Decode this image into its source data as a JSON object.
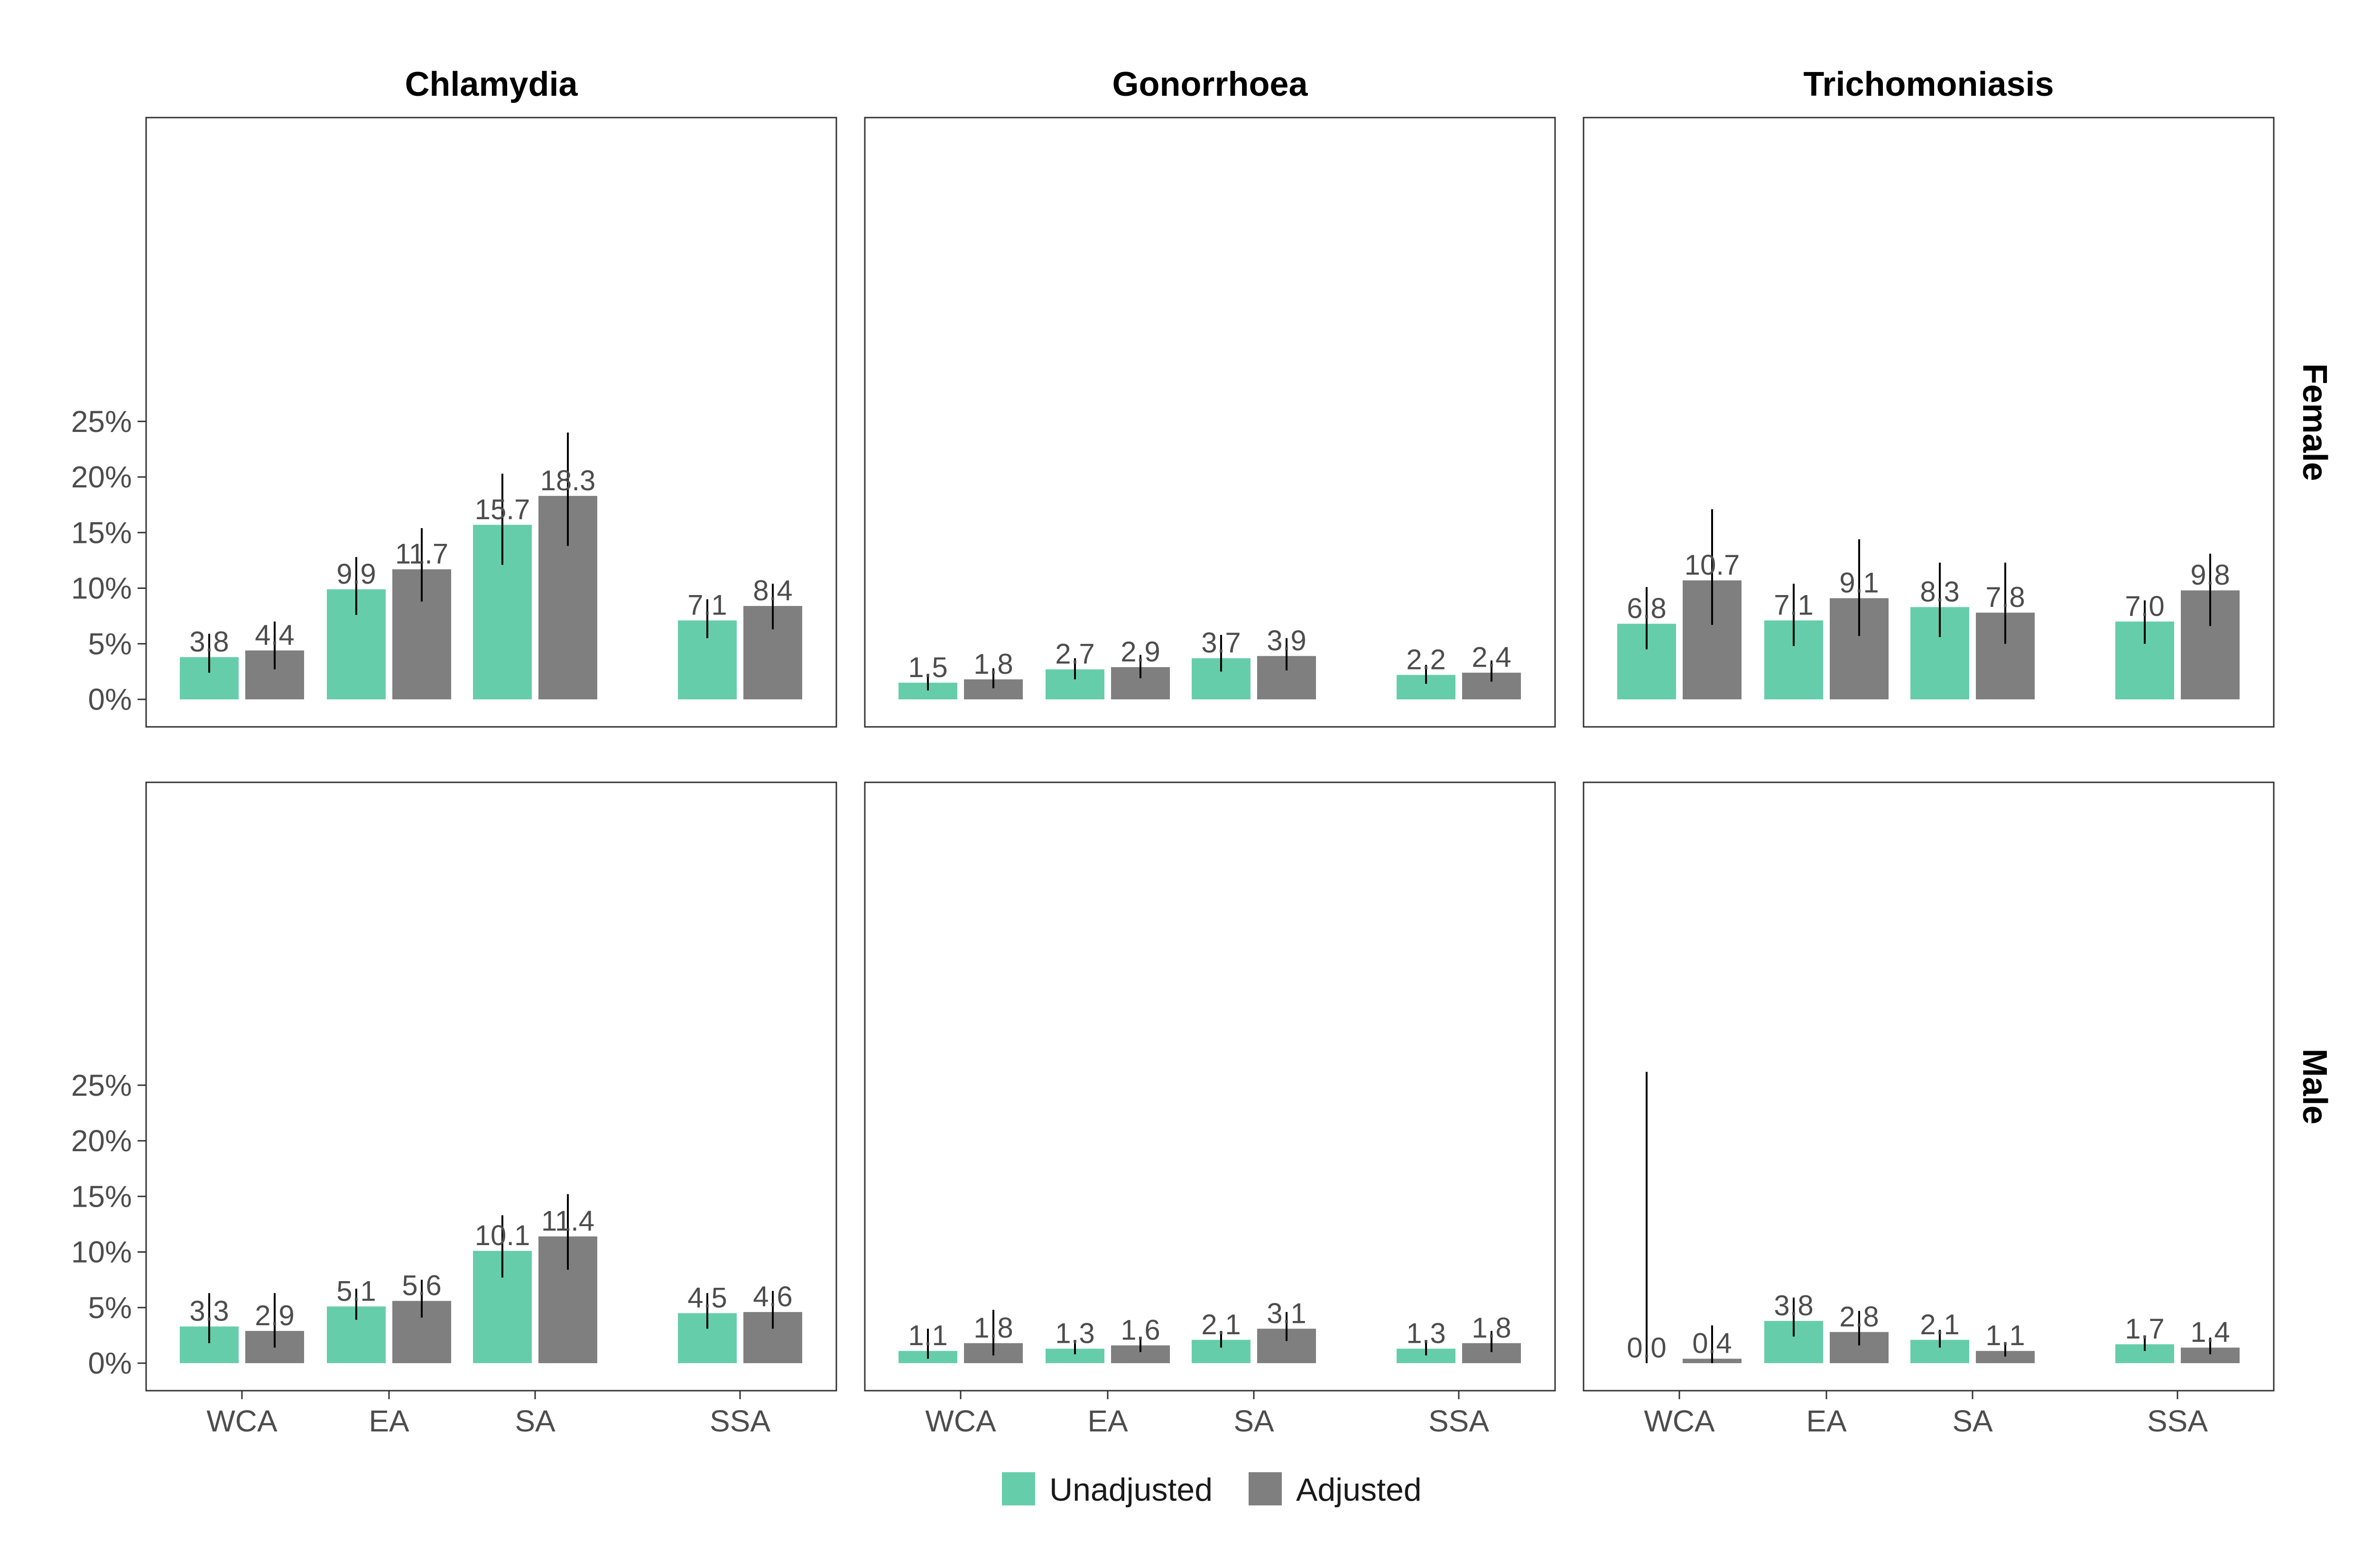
{
  "chart_data": {
    "type": "bar",
    "facets": {
      "columns": [
        "Chlamydia",
        "Gonorrhoea",
        "Trichomoniasis"
      ],
      "rows": [
        "Female",
        "Male"
      ]
    },
    "categories": [
      "WCA",
      "EA",
      "SA",
      "SSA"
    ],
    "series_names": [
      "Unadjusted",
      "Adjusted"
    ],
    "colors": {
      "Unadjusted": "#66cdaa",
      "Adjusted": "#7f7f7f"
    },
    "y_axis": {
      "ylim": [
        0,
        25
      ],
      "ticks": [
        "0%",
        "5%",
        "10%",
        "15%",
        "20%",
        "25%"
      ],
      "tick_values": [
        0,
        5,
        10,
        15,
        20,
        25
      ]
    },
    "panels": [
      {
        "disease": "Chlamydia",
        "sex": "Female",
        "unadjusted": [
          3.8,
          9.9,
          15.7,
          7.1
        ],
        "adjusted": [
          4.4,
          11.7,
          18.3,
          8.4
        ],
        "unadjusted_labels": [
          "3.8",
          "9.9",
          "15.7",
          "7.1"
        ],
        "adjusted_labels": [
          "4.4",
          "11.7",
          "18.3",
          "8.4"
        ],
        "unadjusted_ci": [
          [
            2.4,
            5.9
          ],
          [
            7.6,
            12.8
          ],
          [
            12.1,
            20.3
          ],
          [
            5.5,
            9.0
          ]
        ],
        "adjusted_ci": [
          [
            2.7,
            7.0
          ],
          [
            8.8,
            15.4
          ],
          [
            13.8,
            24.0
          ],
          [
            6.3,
            10.4
          ]
        ]
      },
      {
        "disease": "Gonorrhoea",
        "sex": "Female",
        "unadjusted": [
          1.5,
          2.7,
          3.7,
          2.2
        ],
        "adjusted": [
          1.8,
          2.9,
          3.9,
          2.4
        ],
        "unadjusted_labels": [
          "1.5",
          "2.7",
          "3.7",
          "2.2"
        ],
        "adjusted_labels": [
          "1.8",
          "2.9",
          "3.9",
          "2.4"
        ],
        "unadjusted_ci": [
          [
            0.8,
            2.3
          ],
          [
            1.8,
            3.7
          ],
          [
            2.5,
            5.8
          ],
          [
            1.4,
            3.1
          ]
        ],
        "adjusted_ci": [
          [
            1.0,
            2.8
          ],
          [
            1.9,
            4.0
          ],
          [
            2.6,
            5.5
          ],
          [
            1.6,
            3.5
          ]
        ]
      },
      {
        "disease": "Trichomoniasis",
        "sex": "Female",
        "unadjusted": [
          6.8,
          7.1,
          8.3,
          7.0
        ],
        "adjusted": [
          10.7,
          9.1,
          7.8,
          9.8
        ],
        "unadjusted_labels": [
          "6.8",
          "7.1",
          "8.3",
          "7.0"
        ],
        "adjusted_labels": [
          "10.7",
          "9.1",
          "7.8",
          "9.8"
        ],
        "unadjusted_ci": [
          [
            4.5,
            10.1
          ],
          [
            4.8,
            10.4
          ],
          [
            5.6,
            12.3
          ],
          [
            5.0,
            8.9
          ]
        ],
        "adjusted_ci": [
          [
            6.7,
            17.1
          ],
          [
            5.7,
            14.4
          ],
          [
            5.0,
            12.3
          ],
          [
            6.6,
            13.1
          ]
        ]
      },
      {
        "disease": "Chlamydia",
        "sex": "Male",
        "unadjusted": [
          3.3,
          5.1,
          10.1,
          4.5
        ],
        "adjusted": [
          2.9,
          5.6,
          11.4,
          4.6
        ],
        "unadjusted_labels": [
          "3.3",
          "5.1",
          "10.1",
          "4.5"
        ],
        "adjusted_labels": [
          "2.9",
          "5.6",
          "11.4",
          "4.6"
        ],
        "unadjusted_ci": [
          [
            1.8,
            6.3
          ],
          [
            3.9,
            6.7
          ],
          [
            7.7,
            13.3
          ],
          [
            3.1,
            6.3
          ]
        ],
        "adjusted_ci": [
          [
            1.4,
            6.3
          ],
          [
            4.1,
            7.5
          ],
          [
            8.4,
            15.2
          ],
          [
            3.1,
            6.5
          ]
        ]
      },
      {
        "disease": "Gonorrhoea",
        "sex": "Male",
        "unadjusted": [
          1.1,
          1.3,
          2.1,
          1.3
        ],
        "adjusted": [
          1.8,
          1.6,
          3.1,
          1.8
        ],
        "unadjusted_labels": [
          "1.1",
          "1.3",
          "2.1",
          "1.3"
        ],
        "adjusted_labels": [
          "1.8",
          "1.6",
          "3.1",
          "1.8"
        ],
        "unadjusted_ci": [
          [
            0.4,
            3.1
          ],
          [
            0.8,
            1.8
          ],
          [
            1.4,
            2.9
          ],
          [
            0.7,
            1.9
          ]
        ],
        "adjusted_ci": [
          [
            0.7,
            4.8
          ],
          [
            1.0,
            2.2
          ],
          [
            2.0,
            4.6
          ],
          [
            1.0,
            2.9
          ]
        ]
      },
      {
        "disease": "Trichomoniasis",
        "sex": "Male",
        "unadjusted": [
          0.0,
          3.8,
          2.1,
          1.7
        ],
        "adjusted": [
          0.4,
          2.8,
          1.1,
          1.4
        ],
        "unadjusted_labels": [
          "0.0",
          "3.8",
          "2.1",
          "1.7"
        ],
        "adjusted_labels": [
          "0.4",
          "2.8",
          "1.1",
          "1.4"
        ],
        "unadjusted_ci": [
          [
            0.0,
            26.2
          ],
          [
            2.4,
            5.9
          ],
          [
            1.4,
            3.0
          ],
          [
            1.1,
            2.5
          ]
        ],
        "adjusted_ci": [
          [
            0.0,
            3.4
          ],
          [
            1.6,
            4.7
          ],
          [
            0.6,
            1.9
          ],
          [
            0.8,
            2.3
          ]
        ]
      }
    ],
    "legend": {
      "position": "bottom",
      "entries": [
        "Unadjusted",
        "Adjusted"
      ]
    }
  }
}
